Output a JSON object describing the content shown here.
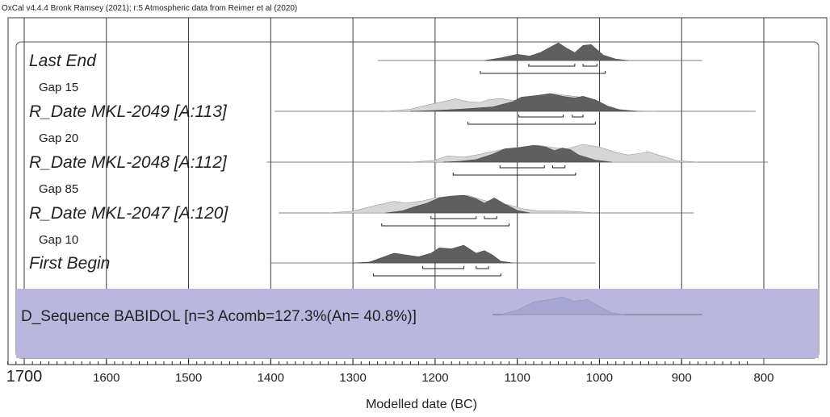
{
  "header": "OxCal v4.4.4 Bronk Ramsey (2021); r:5 Atmospheric data from Reimer et al (2020)",
  "chart_data": {
    "type": "area",
    "xlabel": "Modelled date (BC)",
    "xlim": [
      1720,
      820
    ],
    "x_ticks": [
      {
        "value": 1700,
        "label": "1700"
      },
      {
        "value": 1600,
        "label": "1600"
      },
      {
        "value": 1500,
        "label": "1500"
      },
      {
        "value": 1400,
        "label": "1400"
      },
      {
        "value": 1300,
        "label": "1300"
      },
      {
        "value": 1200,
        "label": "1200"
      },
      {
        "value": 1100,
        "label": "1100"
      },
      {
        "value": 1000,
        "label": "1000"
      },
      {
        "value": 900,
        "label": "900"
      },
      {
        "value": 800,
        "label": "800"
      }
    ],
    "grid": true,
    "rows": [
      {
        "label": "Last End",
        "line": [
          1270,
          875
        ],
        "posterior": [
          [
            1140,
            0
          ],
          [
            1120,
            0.15
          ],
          [
            1100,
            0.35
          ],
          [
            1085,
            0.25
          ],
          [
            1072,
            0.45
          ],
          [
            1060,
            0.75
          ],
          [
            1050,
            1
          ],
          [
            1040,
            0.7
          ],
          [
            1030,
            0.45
          ],
          [
            1020,
            0.85
          ],
          [
            1010,
            0.9
          ],
          [
            995,
            0.3
          ],
          [
            980,
            0.08
          ],
          [
            965,
            0
          ]
        ],
        "ranges": [
          [
            [
              1086,
              1030
            ],
            [
              1020,
              1003
            ]
          ],
          [
            [
              1145,
              993
            ]
          ]
        ]
      },
      {
        "label": "Gap 15"
      },
      {
        "label": "R_Date MKL-2049 [A:113]",
        "line": [
          1395,
          810
        ],
        "prior": [
          [
            1260,
            0
          ],
          [
            1230,
            0.12
          ],
          [
            1210,
            0.35
          ],
          [
            1190,
            0.55
          ],
          [
            1175,
            0.7
          ],
          [
            1160,
            0.55
          ],
          [
            1145,
            0.5
          ],
          [
            1135,
            0.65
          ],
          [
            1120,
            0.72
          ],
          [
            1105,
            0.6
          ],
          [
            1085,
            0.82
          ],
          [
            1060,
            1
          ],
          [
            1040,
            0.9
          ],
          [
            1020,
            0.78
          ],
          [
            1000,
            0.45
          ],
          [
            985,
            0.15
          ],
          [
            960,
            0.03
          ],
          [
            930,
            0
          ]
        ],
        "posterior": [
          [
            1230,
            0
          ],
          [
            1200,
            0.05
          ],
          [
            1170,
            0.12
          ],
          [
            1130,
            0.25
          ],
          [
            1105,
            0.55
          ],
          [
            1095,
            0.8
          ],
          [
            1075,
            0.9
          ],
          [
            1060,
            1
          ],
          [
            1045,
            0.85
          ],
          [
            1030,
            0.75
          ],
          [
            1020,
            0.85
          ],
          [
            1005,
            0.65
          ],
          [
            990,
            0.3
          ],
          [
            975,
            0.08
          ],
          [
            955,
            0
          ]
        ],
        "ranges": [
          [
            [
              1098,
              1044
            ],
            [
              1033,
              1020
            ]
          ],
          [
            [
              1160,
              1005
            ]
          ]
        ]
      },
      {
        "label": "Gap 20"
      },
      {
        "label": "R_Date MKL-2048 [A:112]",
        "line": [
          1405,
          795
        ],
        "prior": [
          [
            1230,
            0
          ],
          [
            1200,
            0.1
          ],
          [
            1185,
            0.35
          ],
          [
            1165,
            0.28
          ],
          [
            1150,
            0.4
          ],
          [
            1135,
            0.55
          ],
          [
            1115,
            0.75
          ],
          [
            1095,
            0.85
          ],
          [
            1075,
            0.95
          ],
          [
            1055,
            0.82
          ],
          [
            1040,
            0.75
          ],
          [
            1020,
            1
          ],
          [
            1000,
            0.85
          ],
          [
            980,
            0.55
          ],
          [
            965,
            0.4
          ],
          [
            950,
            0.5
          ],
          [
            940,
            0.58
          ],
          [
            925,
            0.35
          ],
          [
            905,
            0.08
          ],
          [
            880,
            0
          ]
        ],
        "posterior": [
          [
            1190,
            0
          ],
          [
            1170,
            0.05
          ],
          [
            1150,
            0.15
          ],
          [
            1130,
            0.45
          ],
          [
            1115,
            0.75
          ],
          [
            1100,
            0.8
          ],
          [
            1080,
            0.95
          ],
          [
            1065,
            0.85
          ],
          [
            1055,
            0.65
          ],
          [
            1045,
            0.8
          ],
          [
            1035,
            0.7
          ],
          [
            1025,
            0.4
          ],
          [
            1005,
            0.12
          ],
          [
            985,
            0
          ]
        ],
        "ranges": [
          [
            [
              1121,
              1067
            ],
            [
              1057,
              1042
            ]
          ],
          [
            [
              1178,
              1029
            ]
          ]
        ]
      },
      {
        "label": "Gap 85"
      },
      {
        "label": "R_Date MKL-2047 [A:120]",
        "line": [
          1390,
          885
        ],
        "prior": [
          [
            1330,
            0
          ],
          [
            1300,
            0.1
          ],
          [
            1270,
            0.45
          ],
          [
            1250,
            0.65
          ],
          [
            1235,
            0.55
          ],
          [
            1215,
            0.68
          ],
          [
            1200,
            0.85
          ],
          [
            1180,
            0.95
          ],
          [
            1160,
            1
          ],
          [
            1140,
            0.7
          ],
          [
            1125,
            0.55
          ],
          [
            1110,
            0.45
          ],
          [
            1095,
            0.25
          ],
          [
            1075,
            0.12
          ],
          [
            1050,
            0.12
          ],
          [
            1030,
            0.08
          ],
          [
            1005,
            0
          ]
        ],
        "posterior": [
          [
            1260,
            0
          ],
          [
            1240,
            0.12
          ],
          [
            1225,
            0.35
          ],
          [
            1210,
            0.55
          ],
          [
            1195,
            0.85
          ],
          [
            1180,
            0.95
          ],
          [
            1165,
            1
          ],
          [
            1150,
            0.8
          ],
          [
            1140,
            0.55
          ],
          [
            1128,
            0.85
          ],
          [
            1115,
            0.5
          ],
          [
            1100,
            0.15
          ],
          [
            1085,
            0
          ]
        ],
        "ranges": [
          [
            [
              1205,
              1150
            ],
            [
              1140,
              1125
            ]
          ],
          [
            [
              1265,
              1110
            ]
          ]
        ]
      },
      {
        "label": "Gap 10"
      },
      {
        "label": "First Begin",
        "line": [
          1400,
          1005
        ],
        "posterior": [
          [
            1300,
            0
          ],
          [
            1280,
            0.05
          ],
          [
            1265,
            0.3
          ],
          [
            1250,
            0.55
          ],
          [
            1235,
            0.45
          ],
          [
            1220,
            0.35
          ],
          [
            1205,
            0.55
          ],
          [
            1195,
            0.85
          ],
          [
            1180,
            0.8
          ],
          [
            1165,
            1
          ],
          [
            1150,
            0.55
          ],
          [
            1140,
            0.7
          ],
          [
            1130,
            0.45
          ],
          [
            1120,
            0.1
          ],
          [
            1105,
            0
          ]
        ],
        "ranges": [
          [
            [
              1215,
              1165
            ],
            [
              1150,
              1135
            ]
          ],
          [
            [
              1275,
              1120
            ]
          ]
        ]
      }
    ],
    "sequence": {
      "label": "D_Sequence BABIDOL [n=3 Acomb=127.3%(An= 40.8%)]",
      "line": [
        1130,
        875
      ],
      "curve": [
        [
          1120,
          0
        ],
        [
          1100,
          0.25
        ],
        [
          1080,
          0.7
        ],
        [
          1060,
          0.85
        ],
        [
          1045,
          1
        ],
        [
          1030,
          0.75
        ],
        [
          1015,
          0.85
        ],
        [
          1000,
          0.45
        ],
        [
          985,
          0.1
        ],
        [
          970,
          0
        ]
      ]
    }
  },
  "colors": {
    "prior": "#d6d6d6",
    "posterior": "#5f5f5f",
    "sequence_band": "#b9b7de",
    "sequence_curve": "#a7a6d3",
    "grid": "#3a3a3a",
    "text": "#222222"
  }
}
